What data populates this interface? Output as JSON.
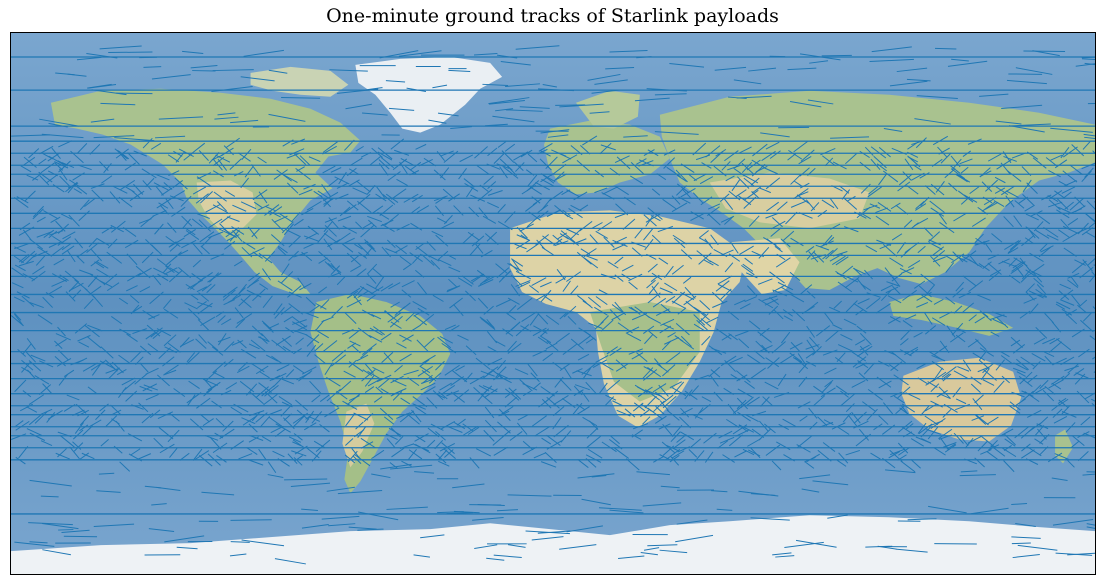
{
  "figure": {
    "title": "One-minute ground tracks of Starlink payloads"
  },
  "map": {
    "projection": "plate-carree",
    "basemap": "natural-earth-shaded-relief",
    "lon_range": [
      -180,
      180
    ],
    "lat_range": [
      -90,
      90
    ],
    "colors": {
      "ocean_deep": "#5b8fbf",
      "ocean_light": "#7eaad3",
      "land_green": "#9dba86",
      "land_tan": "#d8d0a4",
      "ice": "#eef2f6",
      "track": "#1f77b4"
    }
  },
  "chart_data": {
    "type": "line",
    "title": "One-minute ground tracks of Starlink payloads",
    "xlabel": "",
    "ylabel": "",
    "xlim": [
      -180,
      180
    ],
    "ylim": [
      -90,
      90
    ],
    "grid": false,
    "legend": "none",
    "series_color": "#1f77b4",
    "horizontal_tracks_lat": [
      82,
      71,
      59,
      54,
      50,
      46,
      43,
      39,
      35,
      30,
      25,
      20,
      16,
      9,
      3,
      -3,
      -9,
      -16,
      -20,
      -25,
      -30,
      -34,
      -37,
      -41,
      -44,
      -48,
      -52,
      -70
    ],
    "high_density_band_lat": [
      -53,
      53
    ],
    "sample_tracks": [
      {
        "lon": -150,
        "lat": 40,
        "dlon": 3.5,
        "dlat": 2.5
      },
      {
        "lon": -120,
        "lat": 10,
        "dlon": 3.5,
        "dlat": -2.5
      },
      {
        "lon": -90,
        "lat": -20,
        "dlon": -3.5,
        "dlat": 2.5
      },
      {
        "lon": -60,
        "lat": 30,
        "dlon": 3.5,
        "dlat": 2.5
      },
      {
        "lon": -30,
        "lat": -40,
        "dlon": 3.5,
        "dlat": -2.5
      },
      {
        "lon": 0,
        "lat": 20,
        "dlon": -3.5,
        "dlat": 2.5
      },
      {
        "lon": 30,
        "lat": -10,
        "dlon": 3.5,
        "dlat": 2.5
      },
      {
        "lon": 60,
        "lat": 45,
        "dlon": 3.5,
        "dlat": -2.5
      },
      {
        "lon": 90,
        "lat": -30,
        "dlon": -3.5,
        "dlat": 2.5
      },
      {
        "lon": 120,
        "lat": 5,
        "dlon": 3.5,
        "dlat": 2.5
      },
      {
        "lon": 150,
        "lat": -45,
        "dlon": 3.5,
        "dlat": -2.5
      },
      {
        "lon": 170,
        "lat": 35,
        "dlon": -3.5,
        "dlat": 2.5
      }
    ]
  }
}
